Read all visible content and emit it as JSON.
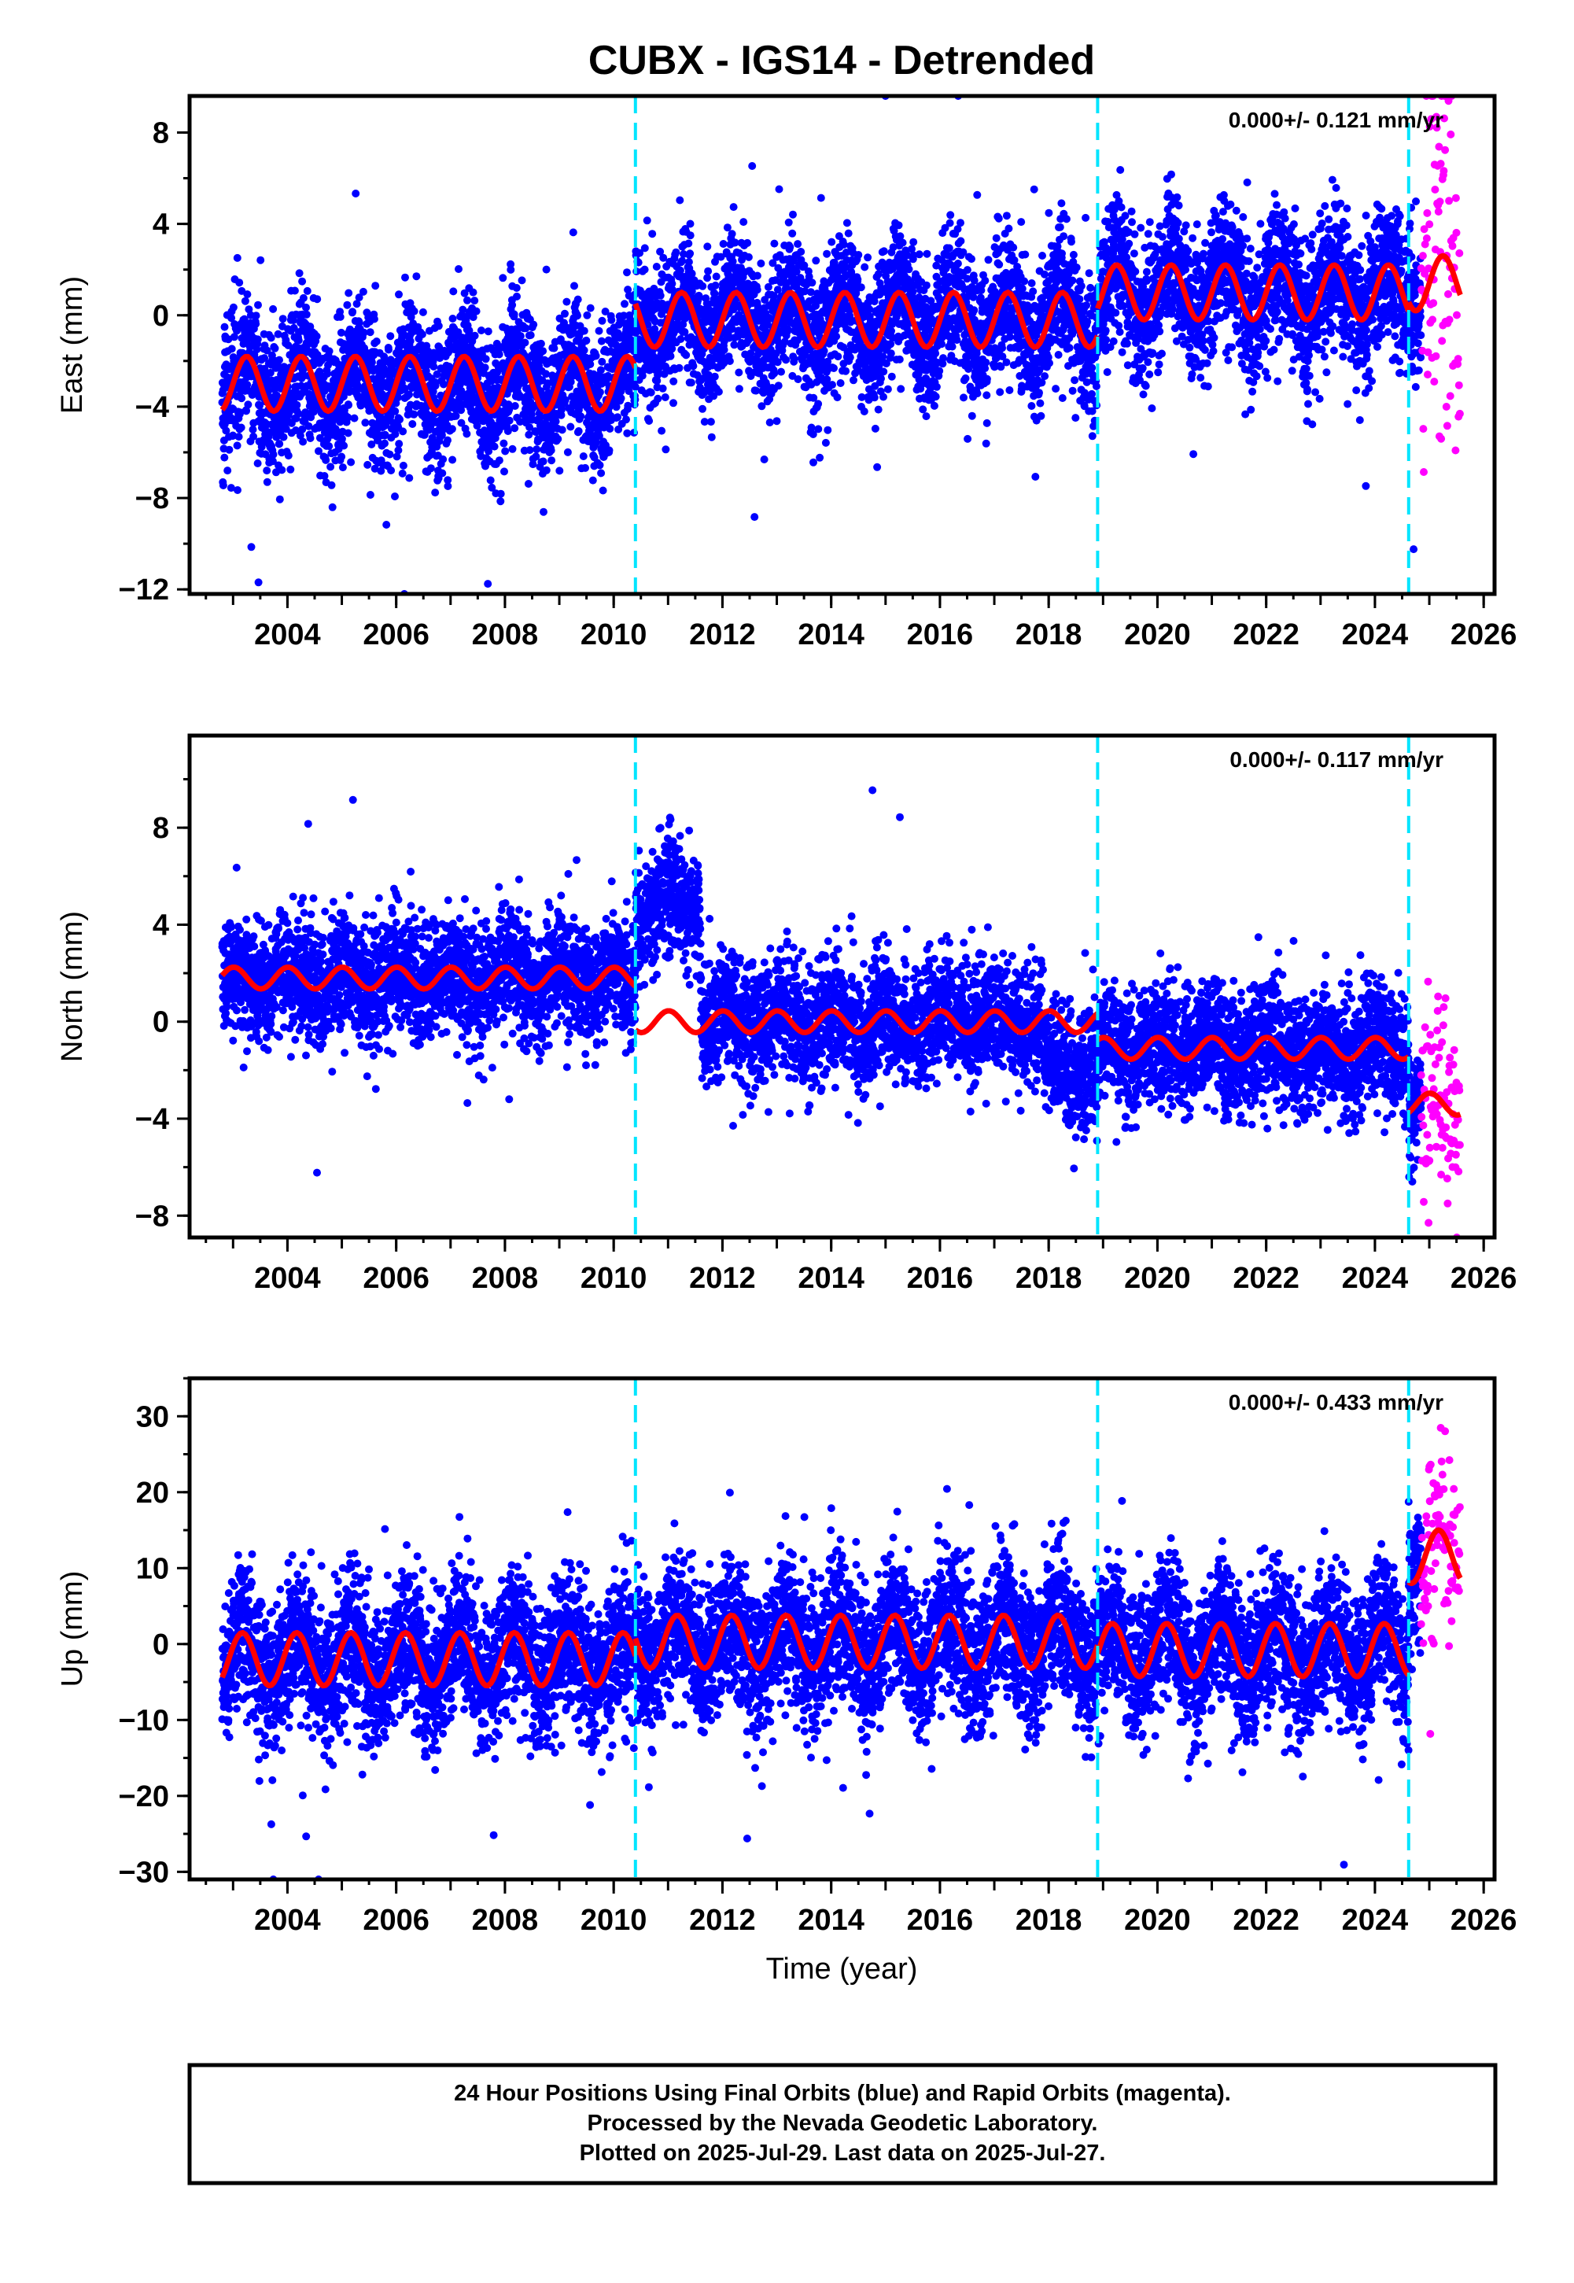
{
  "title": "CUBX - IGS14 - Detrended",
  "colors": {
    "final_orbits": "#0000ff",
    "rapid_orbits": "#ff00ff",
    "model_fit": "#ff0000",
    "steps": "#00e5ff",
    "axes": "#000000"
  },
  "chart_data": [
    {
      "type": "scatter",
      "component": "east",
      "ylabel": "East (mm)",
      "xlabel": "",
      "rate": "0.000+/- 0.121 mm/yr",
      "xlim": [
        2002.2,
        2026.2
      ],
      "ylim": [
        -12.2,
        9.6
      ],
      "yticks": [
        8,
        4,
        0,
        -4,
        -8,
        -12
      ],
      "ytick_labels": [
        "8",
        "4",
        "0",
        "−4",
        "−8",
        "−12"
      ],
      "xticks": [
        2004,
        2006,
        2008,
        2010,
        2012,
        2014,
        2016,
        2018,
        2020,
        2022,
        2024,
        2026
      ],
      "xtick_labels": [
        "2004",
        "2006",
        "2008",
        "2010",
        "2012",
        "2014",
        "2016",
        "2018",
        "2020",
        "2022",
        "2024",
        "2026"
      ],
      "data_span": [
        2002.8,
        2025.57
      ],
      "rapid_span": [
        2024.85,
        2025.57
      ],
      "step_epochs": [
        2010.4,
        2018.9,
        2024.62
      ],
      "segments": [
        {
          "name": "2002.8-2010.4",
          "start": 2002.8,
          "end": 2010.4,
          "offset": -3.0,
          "amplitude": 1.2,
          "phase": 0.0
        },
        {
          "name": "2010.4-2018.9",
          "start": 2010.4,
          "end": 2018.9,
          "offset": -0.2,
          "amplitude": 1.2,
          "phase": 0.0
        },
        {
          "name": "2018.9-2024.62",
          "start": 2018.9,
          "end": 2024.62,
          "offset": 1.0,
          "amplitude": 1.2,
          "phase": 0.0
        },
        {
          "name": "2024.62-2025.57",
          "start": 2024.62,
          "end": 2025.57,
          "offset": 1.4,
          "amplitude": 1.2,
          "phase": 0.0
        }
      ],
      "final_scatter_mm": 1.5,
      "rapid_scatter_mm": 4.5,
      "point_count": 7500,
      "rapid_count": 90
    },
    {
      "type": "scatter",
      "component": "north",
      "ylabel": "North (mm)",
      "xlabel": "",
      "rate": "0.000+/- 0.117 mm/yr",
      "xlim": [
        2002.2,
        2026.2
      ],
      "ylim": [
        -8.9,
        11.8
      ],
      "yticks": [
        8,
        4,
        0,
        -4,
        -8
      ],
      "ytick_labels": [
        "8",
        "4",
        "0",
        "−4",
        "−8"
      ],
      "xticks": [
        2004,
        2006,
        2008,
        2010,
        2012,
        2014,
        2016,
        2018,
        2020,
        2022,
        2024,
        2026
      ],
      "xtick_labels": [
        "2004",
        "2006",
        "2008",
        "2010",
        "2012",
        "2014",
        "2016",
        "2018",
        "2020",
        "2022",
        "2024",
        "2026"
      ],
      "data_span": [
        2002.8,
        2025.57
      ],
      "rapid_span": [
        2024.85,
        2025.57
      ],
      "step_epochs": [
        2010.4,
        2018.9,
        2024.62
      ],
      "segments": [
        {
          "name": "2002.8-2010.4",
          "start": 2002.8,
          "end": 2010.4,
          "offset": 1.8,
          "amplitude": 0.45,
          "phase": 1.5
        },
        {
          "name": "2010.4-2018.9",
          "start": 2010.4,
          "end": 2018.9,
          "offset": 0.0,
          "amplitude": 0.45,
          "phase": 1.5
        },
        {
          "name": "2018.9-2024.62",
          "start": 2018.9,
          "end": 2024.62,
          "offset": -1.1,
          "amplitude": 0.45,
          "phase": 1.5
        },
        {
          "name": "2024.62-2025.57",
          "start": 2024.62,
          "end": 2025.57,
          "offset": -3.4,
          "amplitude": 0.45,
          "phase": 1.5
        }
      ],
      "data_offsets": [
        {
          "name": "2010.4-2011.6",
          "start": 2010.4,
          "end": 2011.6,
          "delta": 4.7
        },
        {
          "name": "2017.9-2018.9",
          "start": 2017.9,
          "end": 2018.9,
          "delta": -1.9
        }
      ],
      "final_scatter_mm": 1.2,
      "rapid_scatter_mm": 2.0,
      "point_count": 7500,
      "rapid_count": 90
    },
    {
      "type": "scatter",
      "component": "up",
      "ylabel": "Up (mm)",
      "xlabel": "Time (year)",
      "rate": "0.000+/- 0.433 mm/yr",
      "xlim": [
        2002.2,
        2026.2
      ],
      "ylim": [
        -31.0,
        35.0
      ],
      "yticks": [
        30,
        20,
        10,
        0,
        -10,
        -20,
        -30
      ],
      "ytick_labels": [
        "30",
        "20",
        "10",
        "0",
        "−10",
        "−20",
        "−30"
      ],
      "xticks": [
        2004,
        2006,
        2008,
        2010,
        2012,
        2014,
        2016,
        2018,
        2020,
        2022,
        2024,
        2026
      ],
      "xtick_labels": [
        "2004",
        "2006",
        "2008",
        "2010",
        "2012",
        "2014",
        "2016",
        "2018",
        "2020",
        "2022",
        "2024",
        "2026"
      ],
      "data_span": [
        2002.8,
        2025.57
      ],
      "rapid_span": [
        2024.85,
        2025.57
      ],
      "step_epochs": [
        2010.4,
        2018.9,
        2024.62
      ],
      "segments": [
        {
          "name": "2002.8-2010.4",
          "start": 2002.8,
          "end": 2010.4,
          "offset": -2.0,
          "amplitude": 3.5,
          "phase": 0.5
        },
        {
          "name": "2010.4-2018.9",
          "start": 2010.4,
          "end": 2018.9,
          "offset": 0.3,
          "amplitude": 3.5,
          "phase": 0.5
        },
        {
          "name": "2018.9-2024.62",
          "start": 2018.9,
          "end": 2024.62,
          "offset": -0.8,
          "amplitude": 3.5,
          "phase": 0.5
        },
        {
          "name": "2024.62-2025.57",
          "start": 2024.62,
          "end": 2025.57,
          "offset": 11.5,
          "amplitude": 3.5,
          "phase": 0.5
        }
      ],
      "final_scatter_mm": 4.8,
      "rapid_scatter_mm": 7.0,
      "point_count": 7500,
      "rapid_count": 90
    }
  ],
  "footer": {
    "line1": "24 Hour Positions Using Final Orbits (blue) and Rapid Orbits (magenta).",
    "line2": "Processed by the Nevada Geodetic Laboratory.",
    "line3": "Plotted on 2025-Jul-29. Last data on 2025-Jul-27."
  }
}
